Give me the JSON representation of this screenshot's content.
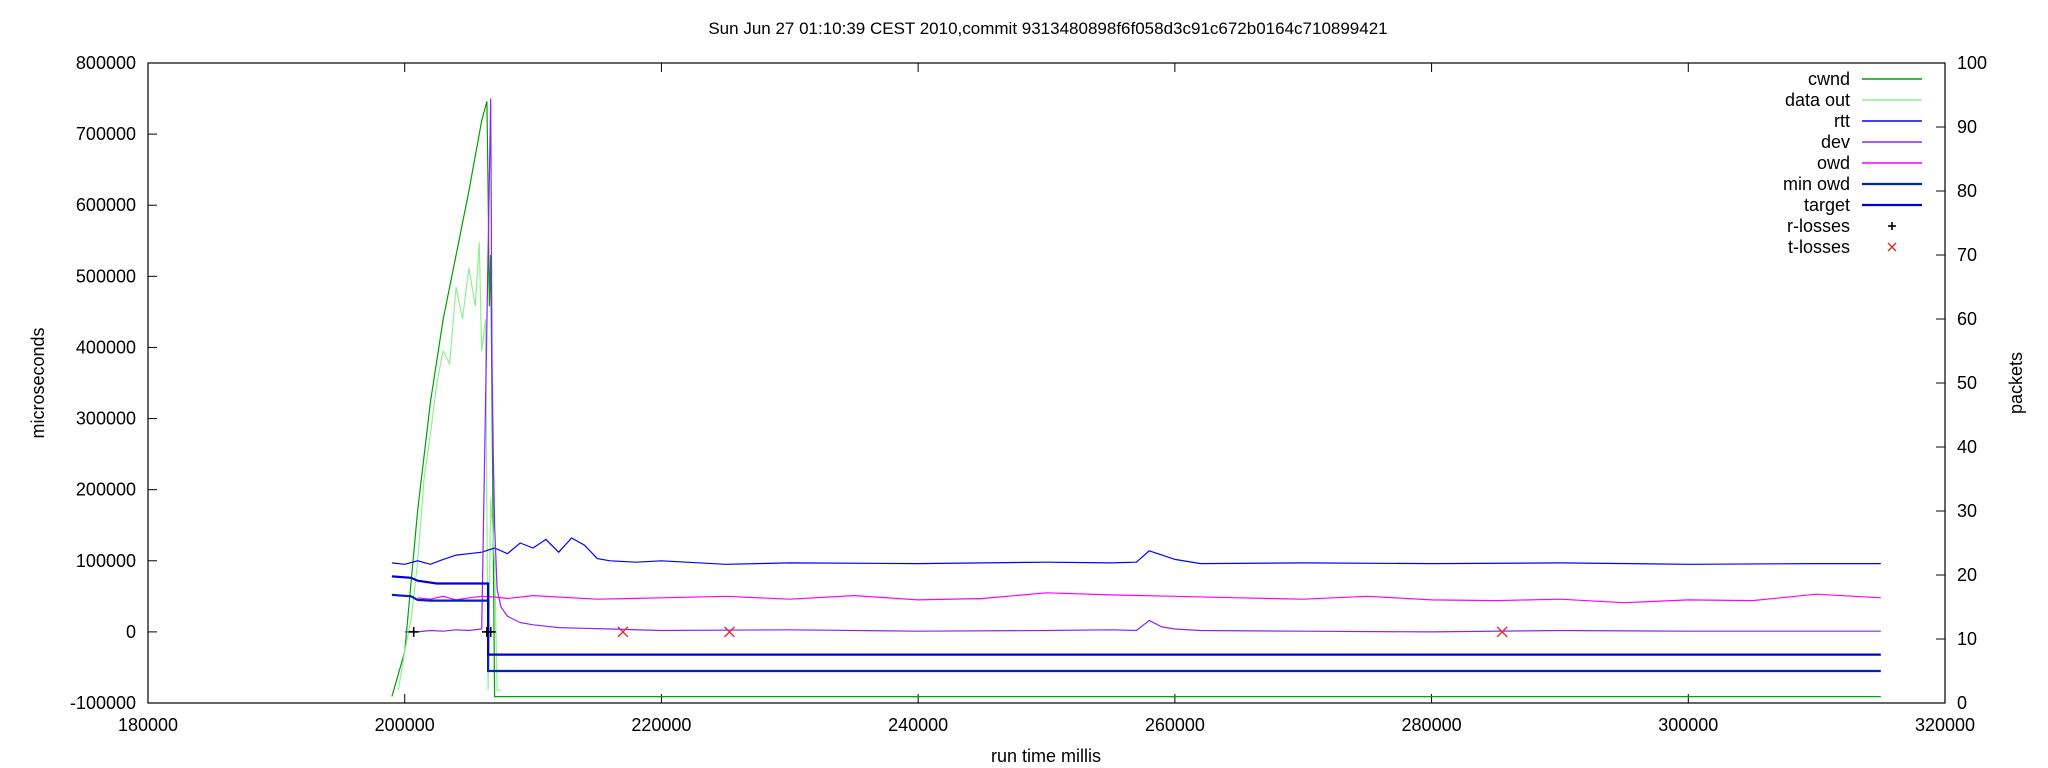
{
  "chart_data": {
    "type": "line",
    "title": "Sun Jun 27 01:10:39 CEST 2010,commit 9313480898f6f058d3c91c672b0164c710899421",
    "xlabel": "run time millis",
    "ylabel": "microseconds",
    "y2label": "packets",
    "xlim": [
      180000,
      320000
    ],
    "ylim": [
      -100000,
      800000
    ],
    "y2lim": [
      0,
      100
    ],
    "x_ticks": [
      180000,
      200000,
      220000,
      240000,
      260000,
      280000,
      300000,
      320000
    ],
    "y_ticks": [
      -100000,
      0,
      100000,
      200000,
      300000,
      400000,
      500000,
      600000,
      700000,
      800000
    ],
    "y2_ticks": [
      0,
      10,
      20,
      30,
      40,
      50,
      60,
      70,
      80,
      90,
      100
    ],
    "legend_position": "top-right",
    "grid": false,
    "series": [
      {
        "name": "cwnd",
        "axis": "y2",
        "color": "#00a000",
        "style": "line",
        "x": [
          199000,
          200000,
          201000,
          202000,
          203000,
          204000,
          205000,
          206000,
          206400,
          206500,
          206600,
          206700,
          207000,
          208000,
          230000,
          260000,
          290000,
          315000
        ],
        "y": [
          1,
          8,
          30,
          47,
          60,
          70,
          80,
          91,
          94,
          80,
          62,
          70,
          1,
          1,
          1,
          1,
          1,
          1
        ]
      },
      {
        "name": "data out",
        "axis": "y2",
        "color": "#90f090",
        "style": "line",
        "x": [
          199500,
          200000,
          200500,
          201000,
          201500,
          202000,
          202500,
          203000,
          203500,
          204000,
          204500,
          205000,
          205500,
          205800,
          206000,
          206300,
          206500,
          206700,
          207000,
          207200,
          207500
        ],
        "y": [
          2,
          8,
          13,
          22,
          35,
          42,
          50,
          55,
          53,
          65,
          60,
          68,
          62,
          72,
          55,
          60,
          2,
          32,
          22,
          2,
          2
        ]
      },
      {
        "name": "rtt",
        "axis": "y",
        "color": "#0000ff",
        "style": "line",
        "x": [
          199000,
          200000,
          201000,
          202000,
          203000,
          204000,
          205000,
          206000,
          207000,
          208000,
          209000,
          210000,
          211000,
          212000,
          213000,
          214000,
          215000,
          216000,
          218000,
          220000,
          225000,
          230000,
          240000,
          250000,
          255000,
          257000,
          258000,
          259000,
          260000,
          262000,
          270000,
          280000,
          290000,
          300000,
          310000,
          315000
        ],
        "y": [
          97000,
          95000,
          100000,
          95000,
          102000,
          108000,
          110000,
          112000,
          118000,
          110000,
          125000,
          118000,
          130000,
          112000,
          132000,
          122000,
          103000,
          100000,
          98000,
          100000,
          95000,
          97000,
          96000,
          98000,
          97000,
          98000,
          114000,
          108000,
          102000,
          96000,
          97000,
          96000,
          97000,
          95000,
          96000,
          96000
        ]
      },
      {
        "name": "dev",
        "axis": "y",
        "color": "#9020ff",
        "style": "line",
        "x": [
          200000,
          201000,
          202000,
          203000,
          204000,
          205000,
          206000,
          206700,
          206800,
          206900,
          207000,
          207200,
          207500,
          208000,
          209000,
          210000,
          211000,
          212000,
          214000,
          216000,
          220000,
          230000,
          240000,
          250000,
          255000,
          257000,
          258000,
          259000,
          260000,
          262000,
          270000,
          280000,
          290000,
          300000,
          310000,
          315000
        ],
        "y": [
          0,
          0,
          2000,
          1000,
          3000,
          2000,
          4000,
          750000,
          380000,
          250000,
          150000,
          60000,
          35000,
          22000,
          13000,
          10000,
          8000,
          6000,
          5000,
          4000,
          2000,
          3000,
          1000,
          2000,
          3000,
          2000,
          16000,
          7000,
          4000,
          2000,
          1000,
          0,
          2000,
          1000,
          1000,
          1000
        ]
      },
      {
        "name": "owd",
        "axis": "y",
        "color": "#ff00ff",
        "style": "line",
        "x": [
          201000,
          202000,
          203000,
          204000,
          205000,
          206000,
          207000,
          208000,
          210000,
          215000,
          220000,
          225000,
          230000,
          235000,
          240000,
          245000,
          250000,
          255000,
          260000,
          265000,
          270000,
          275000,
          280000,
          285000,
          290000,
          295000,
          300000,
          305000,
          310000,
          315000
        ],
        "y": [
          48000,
          46000,
          50000,
          45000,
          48000,
          50000,
          49000,
          47000,
          51000,
          46000,
          48000,
          50000,
          46000,
          51000,
          45000,
          47000,
          55000,
          52000,
          50000,
          48000,
          46000,
          50000,
          45000,
          44000,
          46000,
          41000,
          45000,
          44000,
          53000,
          48000
        ]
      },
      {
        "name": "min owd",
        "axis": "y",
        "color": "#0020c0",
        "style": "step",
        "x": [
          199000,
          200500,
          201000,
          202000,
          206500,
          206500,
          315000
        ],
        "y": [
          52000,
          50000,
          45000,
          44000,
          44000,
          -55000,
          -55000
        ]
      },
      {
        "name": "target",
        "axis": "y",
        "color": "#0000d0",
        "style": "step",
        "x": [
          199000,
          200500,
          201000,
          202500,
          206500,
          206500,
          315000
        ],
        "y": [
          78000,
          76000,
          72000,
          68000,
          68000,
          -32000,
          -32000
        ]
      },
      {
        "name": "r-losses",
        "axis": "y",
        "color": "#000000",
        "style": "plus",
        "x": [
          200700,
          206400,
          206700
        ],
        "y": [
          0,
          0,
          0
        ]
      },
      {
        "name": "t-losses",
        "axis": "y",
        "color": "#e03030",
        "style": "cross",
        "x": [
          217000,
          225300,
          285500
        ],
        "y": [
          0,
          0,
          0
        ]
      }
    ]
  }
}
